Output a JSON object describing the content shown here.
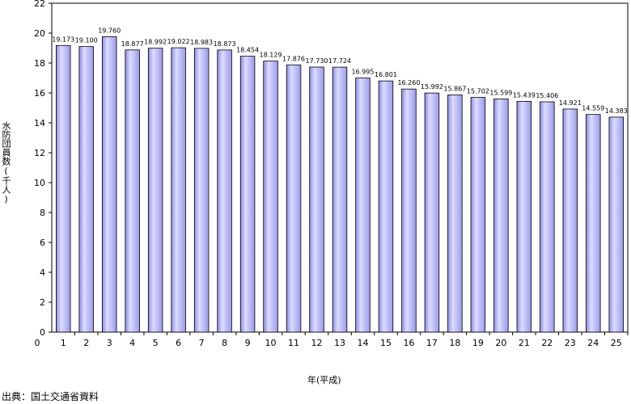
{
  "chart_data": {
    "type": "bar",
    "categories": [
      "1",
      "2",
      "3",
      "4",
      "5",
      "6",
      "7",
      "8",
      "9",
      "10",
      "11",
      "12",
      "13",
      "14",
      "15",
      "16",
      "17",
      "18",
      "19",
      "20",
      "21",
      "22",
      "23",
      "24",
      "25"
    ],
    "values": [
      19.173,
      19.1,
      19.76,
      18.877,
      18.992,
      19.022,
      18.983,
      18.873,
      18.454,
      18.129,
      17.876,
      17.73,
      17.724,
      16.995,
      16.801,
      16.26,
      15.992,
      15.867,
      15.702,
      15.599,
      15.439,
      15.406,
      14.921,
      14.559,
      14.383
    ],
    "data_labels": [
      "19.173",
      "19.100",
      "19.760",
      "18.877",
      "18.992",
      "19.022",
      "18.983",
      "18.873",
      "18.454",
      "18.129",
      "17.876",
      "17.730",
      "17.724",
      "16.995",
      "16.801",
      "16.260",
      "15.992",
      "15.867",
      "15.702",
      "15.599",
      "15.439",
      "15.406",
      "14.921",
      "14.559",
      "14.383"
    ],
    "ylabel": "水防団員数(千人)",
    "xlabel": "年(平成)",
    "ylim": [
      0,
      22
    ],
    "yticks": [
      0,
      2,
      4,
      6,
      8,
      10,
      12,
      14,
      16,
      18,
      20,
      22
    ],
    "x_origin_label": "0",
    "bar_color": "#aaaaf0",
    "legend": "none"
  },
  "source_note": "出典：国土交通省資料"
}
